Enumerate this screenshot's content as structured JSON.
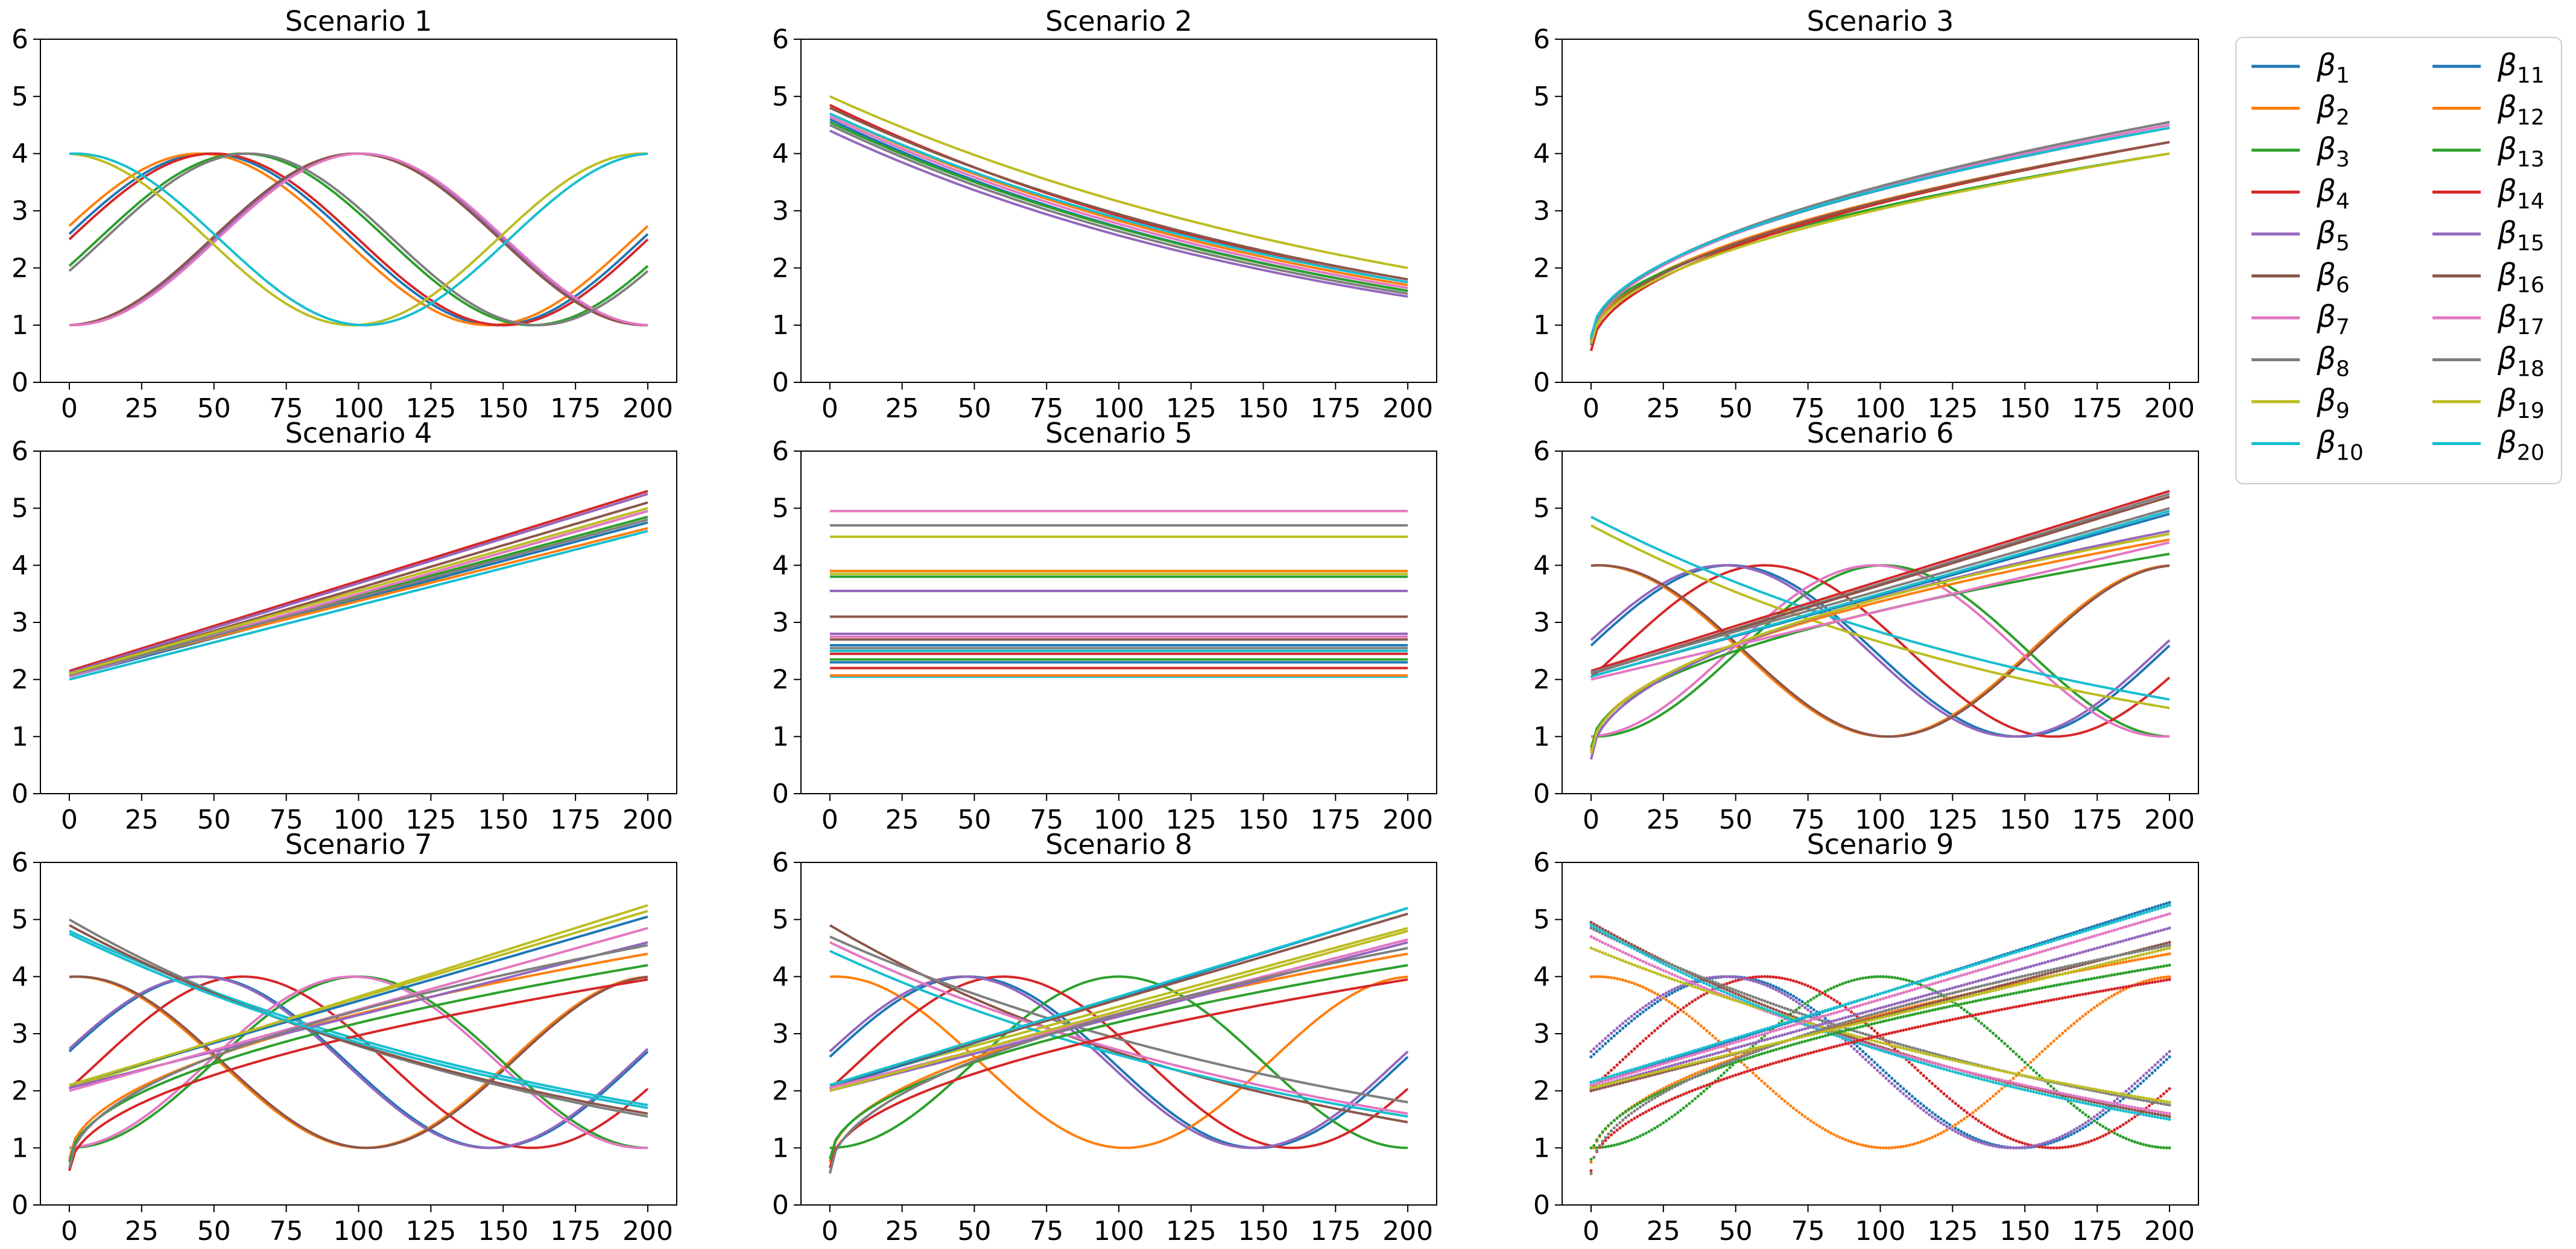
{
  "colors": [
    "#1f77b4",
    "#ff7f0e",
    "#2ca02c",
    "#d62728",
    "#9467bd",
    "#8c564b",
    "#e377c2",
    "#7f7f7f",
    "#bcbd22",
    "#17becf"
  ],
  "legend": {
    "position": "outside-right",
    "entries": [
      {
        "sym": "β",
        "sub": "1"
      },
      {
        "sym": "β",
        "sub": "2"
      },
      {
        "sym": "β",
        "sub": "3"
      },
      {
        "sym": "β",
        "sub": "4"
      },
      {
        "sym": "β",
        "sub": "5"
      },
      {
        "sym": "β",
        "sub": "6"
      },
      {
        "sym": "β",
        "sub": "7"
      },
      {
        "sym": "β",
        "sub": "8"
      },
      {
        "sym": "β",
        "sub": "9"
      },
      {
        "sym": "β",
        "sub": "10"
      },
      {
        "sym": "β",
        "sub": "11"
      },
      {
        "sym": "β",
        "sub": "12"
      },
      {
        "sym": "β",
        "sub": "13"
      },
      {
        "sym": "β",
        "sub": "14"
      },
      {
        "sym": "β",
        "sub": "15"
      },
      {
        "sym": "β",
        "sub": "16"
      },
      {
        "sym": "β",
        "sub": "17"
      },
      {
        "sym": "β",
        "sub": "18"
      },
      {
        "sym": "β",
        "sub": "19"
      },
      {
        "sym": "β",
        "sub": "20"
      }
    ]
  },
  "chart_data": [
    {
      "type": "line",
      "title": "Scenario 1",
      "xlim": [
        0,
        200
      ],
      "ylim": [
        0,
        6
      ],
      "xticks": [
        "0",
        "25",
        "50",
        "75",
        "100",
        "125",
        "150",
        "175",
        "200"
      ],
      "yticks": [
        "0",
        "1",
        "2",
        "3",
        "4",
        "5",
        "6"
      ],
      "series": [
        {
          "kind": "sin",
          "mid": 2.5,
          "amp": 1.5,
          "peak": 48,
          "period": 200
        },
        {
          "kind": "sin",
          "mid": 2.5,
          "amp": 1.5,
          "peak": 45,
          "period": 200
        },
        {
          "kind": "sin",
          "mid": 2.5,
          "amp": 1.5,
          "peak": 60,
          "period": 200
        },
        {
          "kind": "sin",
          "mid": 2.5,
          "amp": 1.5,
          "peak": 50,
          "period": 200
        },
        {
          "kind": "sin",
          "mid": 2.5,
          "amp": 1.5,
          "peak": 100,
          "period": 200
        },
        {
          "kind": "sin",
          "mid": 2.5,
          "amp": 1.5,
          "peak": 99,
          "period": 200
        },
        {
          "kind": "sin",
          "mid": 2.5,
          "amp": 1.5,
          "peak": 101,
          "period": 200
        },
        {
          "kind": "sin",
          "mid": 2.5,
          "amp": 1.5,
          "peak": 62,
          "period": 200
        },
        {
          "kind": "sin",
          "mid": 2.5,
          "amp": 1.5,
          "peak": 198,
          "period": 200
        },
        {
          "kind": "sin",
          "mid": 2.5,
          "amp": 1.5,
          "peak": 2,
          "period": 200
        }
      ]
    },
    {
      "type": "line",
      "title": "Scenario 2",
      "xlim": [
        0,
        200
      ],
      "ylim": [
        0,
        6
      ],
      "xticks": [
        "0",
        "25",
        "50",
        "75",
        "100",
        "125",
        "150",
        "175",
        "200"
      ],
      "yticks": [
        "0",
        "1",
        "2",
        "3",
        "4",
        "5",
        "6"
      ],
      "series": [
        {
          "kind": "exp",
          "a": 4.6,
          "b": 1.6
        },
        {
          "kind": "exp",
          "a": 4.7,
          "b": 1.7
        },
        {
          "kind": "exp",
          "a": 4.55,
          "b": 1.6
        },
        {
          "kind": "exp",
          "a": 4.85,
          "b": 1.75
        },
        {
          "kind": "exp",
          "a": 4.4,
          "b": 1.5
        },
        {
          "kind": "exp",
          "a": 4.8,
          "b": 1.8
        },
        {
          "kind": "exp",
          "a": 4.65,
          "b": 1.65
        },
        {
          "kind": "exp",
          "a": 4.5,
          "b": 1.55
        },
        {
          "kind": "exp",
          "a": 5.0,
          "b": 2.0
        },
        {
          "kind": "exp",
          "a": 4.7,
          "b": 1.75
        }
      ]
    },
    {
      "type": "line",
      "title": "Scenario 3",
      "xlim": [
        0,
        200
      ],
      "ylim": [
        0,
        6
      ],
      "xticks": [
        "0",
        "25",
        "50",
        "75",
        "100",
        "125",
        "150",
        "175",
        "200"
      ],
      "yticks": [
        "0",
        "1",
        "2",
        "3",
        "4",
        "5",
        "6"
      ],
      "series": [
        {
          "kind": "sqrt",
          "a": 0.75,
          "b": 4.45
        },
        {
          "kind": "sqrt",
          "a": 0.7,
          "b": 4.2
        },
        {
          "kind": "sqrt",
          "a": 0.8,
          "b": 4.0
        },
        {
          "kind": "sqrt",
          "a": 0.55,
          "b": 4.2
        },
        {
          "kind": "sqrt",
          "a": 0.7,
          "b": 4.55
        },
        {
          "kind": "sqrt",
          "a": 0.65,
          "b": 4.2
        },
        {
          "kind": "sqrt",
          "a": 0.7,
          "b": 4.5
        },
        {
          "kind": "sqrt",
          "a": 0.72,
          "b": 4.55
        },
        {
          "kind": "sqrt",
          "a": 0.68,
          "b": 4.0
        },
        {
          "kind": "sqrt",
          "a": 0.78,
          "b": 4.45
        }
      ]
    },
    {
      "type": "line",
      "title": "Scenario 4",
      "xlim": [
        0,
        200
      ],
      "ylim": [
        0,
        6
      ],
      "xticks": [
        "0",
        "25",
        "50",
        "75",
        "100",
        "125",
        "150",
        "175",
        "200"
      ],
      "yticks": [
        "0",
        "1",
        "2",
        "3",
        "4",
        "5",
        "6"
      ],
      "series": [
        {
          "kind": "lin",
          "a": 2.05,
          "b": 4.75
        },
        {
          "kind": "lin",
          "a": 2.1,
          "b": 4.65
        },
        {
          "kind": "lin",
          "a": 2.1,
          "b": 4.85
        },
        {
          "kind": "lin",
          "a": 2.15,
          "b": 5.3
        },
        {
          "kind": "lin",
          "a": 2.12,
          "b": 5.25
        },
        {
          "kind": "lin",
          "a": 2.1,
          "b": 5.1
        },
        {
          "kind": "lin",
          "a": 2.05,
          "b": 4.95
        },
        {
          "kind": "lin",
          "a": 2.08,
          "b": 4.8
        },
        {
          "kind": "lin",
          "a": 2.1,
          "b": 5.0
        },
        {
          "kind": "lin",
          "a": 2.0,
          "b": 4.6
        }
      ]
    },
    {
      "type": "line",
      "title": "Scenario 5",
      "xlim": [
        0,
        200
      ],
      "ylim": [
        0,
        6
      ],
      "xticks": [
        "0",
        "25",
        "50",
        "75",
        "100",
        "125",
        "150",
        "175",
        "200"
      ],
      "yticks": [
        "0",
        "1",
        "2",
        "3",
        "4",
        "5",
        "6"
      ],
      "series": [
        {
          "kind": "const",
          "v": 2.3
        },
        {
          "kind": "const",
          "v": 3.9
        },
        {
          "kind": "const",
          "v": 3.8
        },
        {
          "kind": "const",
          "v": 2.45
        },
        {
          "kind": "const",
          "v": 3.55
        },
        {
          "kind": "const",
          "v": 3.1
        },
        {
          "kind": "const",
          "v": 4.95
        },
        {
          "kind": "const",
          "v": 4.7
        },
        {
          "kind": "const",
          "v": 4.5
        },
        {
          "kind": "const",
          "v": 2.05
        },
        {
          "kind": "const",
          "v": 2.6
        },
        {
          "kind": "const",
          "v": 2.07
        },
        {
          "kind": "const",
          "v": 2.35
        },
        {
          "kind": "const",
          "v": 2.2
        },
        {
          "kind": "const",
          "v": 2.8
        },
        {
          "kind": "const",
          "v": 2.7
        },
        {
          "kind": "const",
          "v": 2.75
        },
        {
          "kind": "const",
          "v": 2.55
        },
        {
          "kind": "const",
          "v": 3.85
        },
        {
          "kind": "const",
          "v": 2.5
        }
      ]
    },
    {
      "type": "line",
      "title": "Scenario 6",
      "xlim": [
        0,
        200
      ],
      "ylim": [
        0,
        6
      ],
      "xticks": [
        "0",
        "25",
        "50",
        "75",
        "100",
        "125",
        "150",
        "175",
        "200"
      ],
      "yticks": [
        "0",
        "1",
        "2",
        "3",
        "4",
        "5",
        "6"
      ],
      "series": [
        {
          "kind": "sin",
          "mid": 2.5,
          "amp": 1.5,
          "peak": 48,
          "period": 200
        },
        {
          "kind": "sin",
          "mid": 2.5,
          "amp": 1.5,
          "peak": 2,
          "period": 200
        },
        {
          "kind": "sin",
          "mid": 2.5,
          "amp": 1.5,
          "peak": 101,
          "period": 200
        },
        {
          "kind": "sin",
          "mid": 2.5,
          "amp": 1.5,
          "peak": 60,
          "period": 200
        },
        {
          "kind": "sin",
          "mid": 2.5,
          "amp": 1.5,
          "peak": 46,
          "period": 200
        },
        {
          "kind": "sin",
          "mid": 2.5,
          "amp": 1.5,
          "peak": 3,
          "period": 200
        },
        {
          "kind": "sin",
          "mid": 2.5,
          "amp": 1.5,
          "peak": 98,
          "period": 200
        },
        {
          "kind": "lin",
          "a": 2.1,
          "b": 5.25
        },
        {
          "kind": "exp",
          "a": 4.7,
          "b": 1.5
        },
        {
          "kind": "exp",
          "a": 4.85,
          "b": 1.65
        },
        {
          "kind": "lin",
          "a": 2.05,
          "b": 4.9
        },
        {
          "kind": "sqrt",
          "a": 0.75,
          "b": 4.45
        },
        {
          "kind": "sqrt",
          "a": 0.8,
          "b": 4.2
        },
        {
          "kind": "lin",
          "a": 2.15,
          "b": 5.3
        },
        {
          "kind": "sqrt",
          "a": 0.6,
          "b": 4.6
        },
        {
          "kind": "lin",
          "a": 2.1,
          "b": 5.2
        },
        {
          "kind": "lin",
          "a": 2.0,
          "b": 4.4
        },
        {
          "kind": "lin",
          "a": 2.12,
          "b": 5.0
        },
        {
          "kind": "sqrt",
          "a": 0.7,
          "b": 4.55
        },
        {
          "kind": "lin",
          "a": 2.05,
          "b": 4.95
        }
      ]
    },
    {
      "type": "line",
      "title": "Scenario 7",
      "xlim": [
        0,
        200
      ],
      "ylim": [
        0,
        6
      ],
      "xticks": [
        "0",
        "25",
        "50",
        "75",
        "100",
        "125",
        "150",
        "175",
        "200"
      ],
      "yticks": [
        "0",
        "1",
        "2",
        "3",
        "4",
        "5",
        "6"
      ],
      "series": [
        {
          "kind": "sin",
          "mid": 2.5,
          "amp": 1.5,
          "peak": 46,
          "period": 200
        },
        {
          "kind": "sin",
          "mid": 2.5,
          "amp": 1.5,
          "peak": 2,
          "period": 200
        },
        {
          "kind": "sin",
          "mid": 2.5,
          "amp": 1.5,
          "peak": 100,
          "period": 200
        },
        {
          "kind": "sin",
          "mid": 2.5,
          "amp": 1.5,
          "peak": 60,
          "period": 200
        },
        {
          "kind": "sin",
          "mid": 2.5,
          "amp": 1.5,
          "peak": 45,
          "period": 200
        },
        {
          "kind": "sin",
          "mid": 2.5,
          "amp": 1.5,
          "peak": 3,
          "period": 200
        },
        {
          "kind": "sin",
          "mid": 2.5,
          "amp": 1.5,
          "peak": 98,
          "period": 200
        },
        {
          "kind": "exp",
          "a": 5.0,
          "b": 1.55
        },
        {
          "kind": "lin",
          "a": 2.05,
          "b": 5.25
        },
        {
          "kind": "exp",
          "a": 4.8,
          "b": 1.75
        },
        {
          "kind": "lin",
          "a": 2.1,
          "b": 5.05
        },
        {
          "kind": "sqrt",
          "a": 0.8,
          "b": 4.4
        },
        {
          "kind": "sqrt",
          "a": 0.75,
          "b": 4.2
        },
        {
          "kind": "sqrt",
          "a": 0.6,
          "b": 3.95
        },
        {
          "kind": "lin",
          "a": 2.05,
          "b": 4.6
        },
        {
          "kind": "exp",
          "a": 4.9,
          "b": 1.6
        },
        {
          "kind": "lin",
          "a": 2.0,
          "b": 4.85
        },
        {
          "kind": "sqrt",
          "a": 0.65,
          "b": 4.55
        },
        {
          "kind": "lin",
          "a": 2.1,
          "b": 5.15
        },
        {
          "kind": "exp",
          "a": 4.75,
          "b": 1.7
        }
      ]
    },
    {
      "type": "line",
      "title": "Scenario 8",
      "xlim": [
        0,
        200
      ],
      "ylim": [
        0,
        6
      ],
      "xticks": [
        "0",
        "25",
        "50",
        "75",
        "100",
        "125",
        "150",
        "175",
        "200"
      ],
      "yticks": [
        "0",
        "1",
        "2",
        "3",
        "4",
        "5",
        "6"
      ],
      "series": [
        {
          "kind": "sin",
          "mid": 2.5,
          "amp": 1.5,
          "peak": 48,
          "period": 200
        },
        {
          "kind": "sin",
          "mid": 2.5,
          "amp": 1.5,
          "peak": 2,
          "period": 200
        },
        {
          "kind": "sin",
          "mid": 2.5,
          "amp": 1.5,
          "peak": 100,
          "period": 200
        },
        {
          "kind": "sin",
          "mid": 2.5,
          "amp": 1.5,
          "peak": 60,
          "period": 200
        },
        {
          "kind": "sin",
          "mid": 2.5,
          "amp": 1.5,
          "peak": 46,
          "period": 200
        },
        {
          "kind": "exp",
          "a": 4.9,
          "b": 1.45
        },
        {
          "kind": "exp",
          "a": 4.6,
          "b": 1.6
        },
        {
          "kind": "exp",
          "a": 4.7,
          "b": 1.8
        },
        {
          "kind": "lin",
          "a": 2.1,
          "b": 4.85
        },
        {
          "kind": "exp",
          "a": 4.45,
          "b": 1.55
        },
        {
          "kind": "lin",
          "a": 2.05,
          "b": 5.2
        },
        {
          "kind": "sqrt",
          "a": 0.75,
          "b": 4.4
        },
        {
          "kind": "sqrt",
          "a": 0.8,
          "b": 4.2
        },
        {
          "kind": "sqrt",
          "a": 0.65,
          "b": 3.95
        },
        {
          "kind": "lin",
          "a": 2.0,
          "b": 4.6
        },
        {
          "kind": "lin",
          "a": 2.1,
          "b": 5.1
        },
        {
          "kind": "lin",
          "a": 2.05,
          "b": 4.65
        },
        {
          "kind": "sqrt",
          "a": 0.55,
          "b": 4.5
        },
        {
          "kind": "lin",
          "a": 2.0,
          "b": 4.8
        },
        {
          "kind": "lin",
          "a": 2.1,
          "b": 5.2
        }
      ]
    },
    {
      "type": "scatter",
      "title": "Scenario 9",
      "xlim": [
        0,
        200
      ],
      "ylim": [
        0,
        6
      ],
      "xticks": [
        "0",
        "25",
        "50",
        "75",
        "100",
        "125",
        "150",
        "175",
        "200"
      ],
      "yticks": [
        "0",
        "1",
        "2",
        "3",
        "4",
        "5",
        "6"
      ],
      "series": [
        {
          "kind": "sin",
          "mid": 2.5,
          "amp": 1.5,
          "peak": 48,
          "period": 200
        },
        {
          "kind": "sin",
          "mid": 2.5,
          "amp": 1.5,
          "peak": 2,
          "period": 200
        },
        {
          "kind": "sin",
          "mid": 2.5,
          "amp": 1.5,
          "peak": 100,
          "period": 200
        },
        {
          "kind": "sin",
          "mid": 2.5,
          "amp": 1.5,
          "peak": 60,
          "period": 200
        },
        {
          "kind": "sin",
          "mid": 2.5,
          "amp": 1.5,
          "peak": 46,
          "period": 200
        },
        {
          "kind": "exp",
          "a": 4.95,
          "b": 1.55
        },
        {
          "kind": "exp",
          "a": 4.7,
          "b": 1.6
        },
        {
          "kind": "exp",
          "a": 4.85,
          "b": 1.75
        },
        {
          "kind": "exp",
          "a": 4.5,
          "b": 1.8
        },
        {
          "kind": "exp",
          "a": 4.9,
          "b": 1.5
        },
        {
          "kind": "lin",
          "a": 2.1,
          "b": 5.3
        },
        {
          "kind": "sqrt",
          "a": 0.75,
          "b": 4.4
        },
        {
          "kind": "sqrt",
          "a": 0.8,
          "b": 4.2
        },
        {
          "kind": "sqrt",
          "a": 0.6,
          "b": 3.95
        },
        {
          "kind": "lin",
          "a": 2.05,
          "b": 4.85
        },
        {
          "kind": "lin",
          "a": 2.0,
          "b": 4.6
        },
        {
          "kind": "lin",
          "a": 2.1,
          "b": 5.1
        },
        {
          "kind": "sqrt",
          "a": 0.55,
          "b": 4.55
        },
        {
          "kind": "lin",
          "a": 2.05,
          "b": 4.5
        },
        {
          "kind": "lin",
          "a": 2.15,
          "b": 5.25
        }
      ]
    }
  ]
}
